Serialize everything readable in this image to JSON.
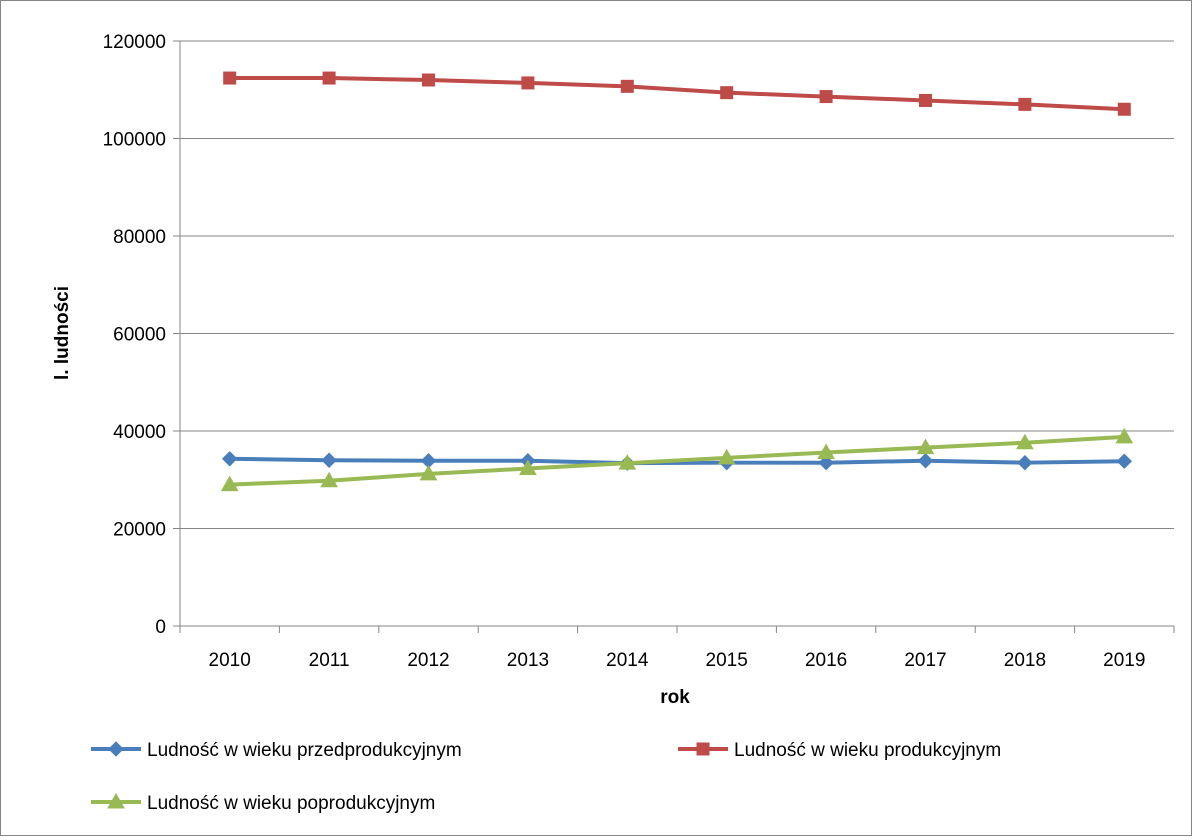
{
  "chart_data": {
    "type": "line",
    "title": "",
    "xlabel": "rok",
    "ylabel": "l. ludności",
    "categories": [
      "2010",
      "2011",
      "2012",
      "2013",
      "2014",
      "2015",
      "2016",
      "2017",
      "2018",
      "2019"
    ],
    "ylim": [
      0,
      120000
    ],
    "yticks": [
      "0",
      "20000",
      "40000",
      "60000",
      "80000",
      "100000",
      "120000"
    ],
    "grid": true,
    "legend_position": "bottom",
    "series": [
      {
        "name": "Ludność w wieku przedprodukcyjnym",
        "color": "#4A7EBB",
        "marker": "diamond",
        "values": [
          34300,
          34000,
          33900,
          33900,
          33400,
          33500,
          33500,
          33900,
          33500,
          33800
        ]
      },
      {
        "name": "Ludność w wieku produkcyjnym",
        "color": "#BE4B48",
        "marker": "square",
        "values": [
          112400,
          112400,
          112000,
          111400,
          110700,
          109400,
          108600,
          107800,
          107000,
          106000
        ]
      },
      {
        "name": "Ludność w wieku poprodukcyjnym",
        "color": "#98B954",
        "marker": "triangle",
        "values": [
          29000,
          29800,
          31200,
          32300,
          33400,
          34500,
          35600,
          36600,
          37600,
          38800
        ]
      }
    ]
  }
}
